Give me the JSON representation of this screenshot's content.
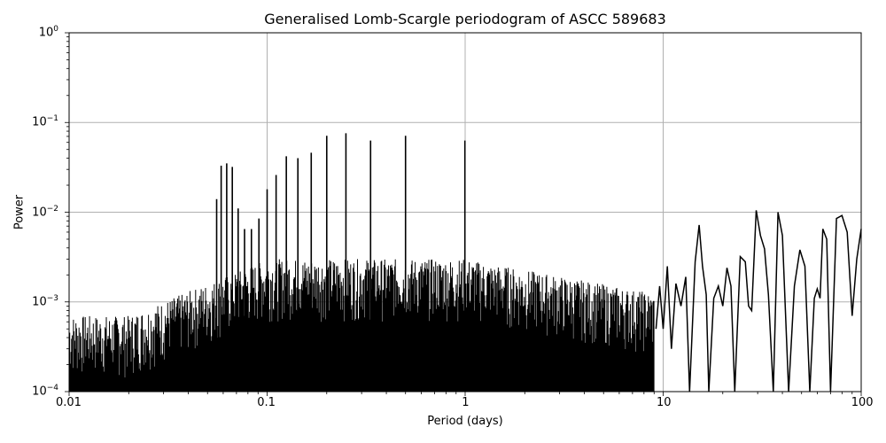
{
  "chart_data": {
    "type": "line",
    "title": "Generalised Lomb-Scargle periodogram of ASCC 589683",
    "xlabel": "Period (days)",
    "ylabel": "Power",
    "xscale": "log",
    "yscale": "log",
    "xlim": [
      0.01,
      100
    ],
    "ylim": [
      0.0001,
      1
    ],
    "grid": true,
    "x_ticks": [
      "0.01",
      "0.1",
      "1",
      "10",
      "100"
    ],
    "y_ticks": [
      {
        "base": "10",
        "exp": "0"
      },
      {
        "base": "10",
        "exp": "−1"
      },
      {
        "base": "10",
        "exp": "−2"
      },
      {
        "base": "10",
        "exp": "−3"
      },
      {
        "base": "10",
        "exp": "−4"
      }
    ],
    "line_color": "#000000",
    "grid_color": "#b0b0b0",
    "peaks": [
      {
        "period": 0.0556,
        "power": 0.014
      },
      {
        "period": 0.0586,
        "power": 0.033
      },
      {
        "period": 0.0625,
        "power": 0.035
      },
      {
        "period": 0.0667,
        "power": 0.032
      },
      {
        "period": 0.0714,
        "power": 0.011
      },
      {
        "period": 0.0769,
        "power": 0.0065
      },
      {
        "period": 0.0833,
        "power": 0.0065
      },
      {
        "period": 0.0909,
        "power": 0.0085
      },
      {
        "period": 0.1,
        "power": 0.018
      },
      {
        "period": 0.111,
        "power": 0.026
      },
      {
        "period": 0.125,
        "power": 0.042
      },
      {
        "period": 0.143,
        "power": 0.04
      },
      {
        "period": 0.167,
        "power": 0.046
      },
      {
        "period": 0.2,
        "power": 0.071
      },
      {
        "period": 0.25,
        "power": 0.076
      },
      {
        "period": 0.333,
        "power": 0.063
      },
      {
        "period": 0.5,
        "power": 0.071
      },
      {
        "period": 0.997,
        "power": 0.063
      }
    ],
    "long_period_curve": [
      [
        9.2,
        0.0005
      ],
      [
        9.6,
        0.0015
      ],
      [
        10.0,
        0.0005
      ],
      [
        10.5,
        0.0025
      ],
      [
        11.0,
        0.0003
      ],
      [
        11.6,
        0.0016
      ],
      [
        12.3,
        0.0009
      ],
      [
        13.0,
        0.0019
      ],
      [
        13.6,
        0.0001
      ],
      [
        14.5,
        0.0028
      ],
      [
        15.2,
        0.0072
      ],
      [
        15.8,
        0.0025
      ],
      [
        16.5,
        0.0012
      ],
      [
        17.0,
        0.0001
      ],
      [
        18.0,
        0.0011
      ],
      [
        19.0,
        0.0015
      ],
      [
        20.0,
        0.0009
      ],
      [
        21.0,
        0.0024
      ],
      [
        22.0,
        0.0015
      ],
      [
        23.0,
        0.0001
      ],
      [
        24.5,
        0.0032
      ],
      [
        26.0,
        0.0028
      ],
      [
        27.0,
        0.0009
      ],
      [
        28.0,
        0.0008
      ],
      [
        29.5,
        0.0105
      ],
      [
        31.0,
        0.0055
      ],
      [
        32.5,
        0.0039
      ],
      [
        34.0,
        0.0012
      ],
      [
        36.0,
        0.0001
      ],
      [
        38.0,
        0.01
      ],
      [
        40.0,
        0.0055
      ],
      [
        43.0,
        0.0001
      ],
      [
        46.0,
        0.0015
      ],
      [
        49.0,
        0.0038
      ],
      [
        52.0,
        0.0025
      ],
      [
        55.0,
        0.0001
      ],
      [
        58.0,
        0.0011
      ],
      [
        60.0,
        0.0014
      ],
      [
        62.0,
        0.0011
      ],
      [
        64.0,
        0.0065
      ],
      [
        67.0,
        0.005
      ],
      [
        70.0,
        0.0001
      ],
      [
        75.0,
        0.0085
      ],
      [
        80.0,
        0.0092
      ],
      [
        85.0,
        0.006
      ],
      [
        90.0,
        0.0007
      ],
      [
        95.0,
        0.003
      ],
      [
        100.0,
        0.0065
      ]
    ]
  }
}
